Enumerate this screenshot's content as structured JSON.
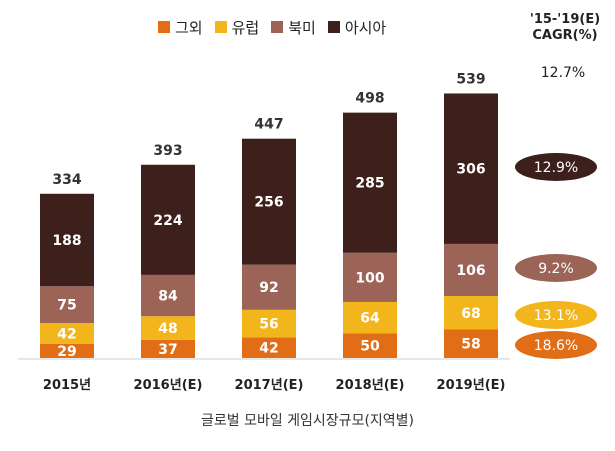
{
  "colors": {
    "other": "#e26d17",
    "europe": "#f2b51c",
    "na": "#9b6457",
    "asia": "#3d1f1b"
  },
  "chart_data": {
    "type": "bar",
    "stacked": true,
    "categories": [
      "2015년",
      "2016년(E)",
      "2017년(E)",
      "2018년(E)",
      "2019년(E)"
    ],
    "series": [
      {
        "name": "그외",
        "values": [
          29,
          37,
          42,
          50,
          58
        ]
      },
      {
        "name": "유럽",
        "values": [
          42,
          48,
          56,
          64,
          68
        ]
      },
      {
        "name": "북미",
        "values": [
          75,
          84,
          92,
          100,
          106
        ]
      },
      {
        "name": "아시아",
        "values": [
          188,
          224,
          256,
          285,
          306
        ]
      }
    ],
    "totals": [
      334,
      393,
      447,
      498,
      539
    ],
    "legend_position": "top",
    "cagr": {
      "header_line1": "'15-'19(E)",
      "header_line2": "CAGR(%)",
      "total": "12.7%",
      "asia": "12.9%",
      "na": "9.2%",
      "europe": "13.1%",
      "other": "18.6%"
    },
    "caption": "글로벌 모바일 게임시장규모(지역별)"
  }
}
